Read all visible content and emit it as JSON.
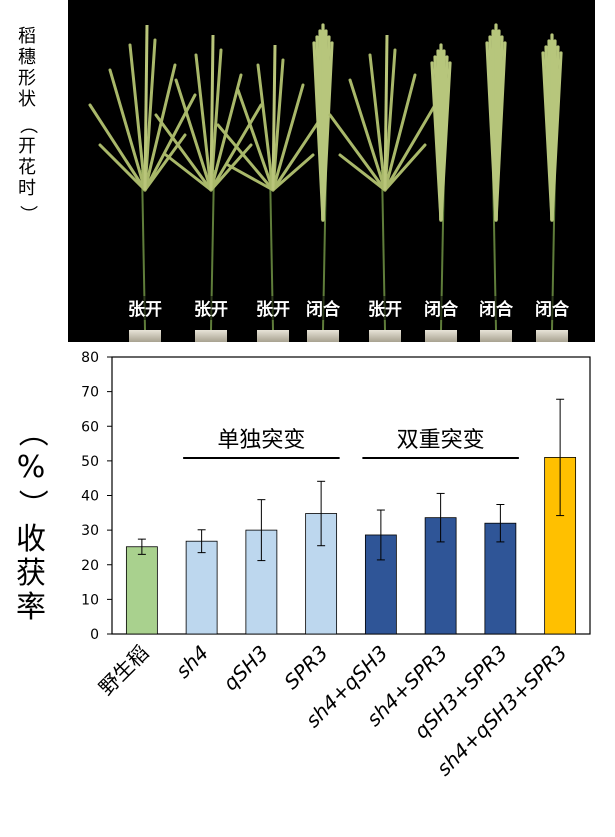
{
  "side_label": {
    "chars": [
      "稻",
      "穗",
      "形",
      "状"
    ],
    "paren_open": "（",
    "paren_chars": [
      "开",
      "花",
      "时"
    ],
    "paren_close": "）"
  },
  "photo_labels": [
    "张开",
    "张开",
    "张开",
    "闭合",
    "张开",
    "闭合",
    "闭合",
    "闭合"
  ],
  "ylabel_chars": {
    "paren_open": "（",
    "percent": "%",
    "paren_close": "）",
    "rest": [
      "收",
      "获",
      "率"
    ]
  },
  "chart_data": {
    "type": "bar",
    "categories": [
      "野生稻",
      "sh4",
      "qSH3",
      "SPR3",
      "sh4+qSH3",
      "sh4+SPR3",
      "qSH3+SPR3",
      "sh4+qSH3+SPR3"
    ],
    "values": [
      25.2,
      26.8,
      30.0,
      34.8,
      28.6,
      33.6,
      32.0,
      51.0
    ],
    "errors": [
      2.2,
      3.3,
      8.8,
      9.3,
      7.2,
      7.0,
      5.4,
      16.8
    ],
    "colors": [
      "#a9d18e",
      "#bdd7ee",
      "#bdd7ee",
      "#bdd7ee",
      "#2f5597",
      "#2f5597",
      "#2f5597",
      "#ffc000"
    ],
    "italic_categories": [
      false,
      true,
      true,
      true,
      true,
      true,
      true,
      true
    ],
    "ylim": [
      0,
      80
    ],
    "yticks": [
      0,
      10,
      20,
      30,
      40,
      50,
      60,
      70,
      80
    ],
    "ylabel": "（%）收获率",
    "annotations": [
      {
        "text": "单独突变",
        "from_category": 1,
        "to_category": 3
      },
      {
        "text": "双重突变",
        "from_category": 4,
        "to_category": 6
      }
    ]
  }
}
